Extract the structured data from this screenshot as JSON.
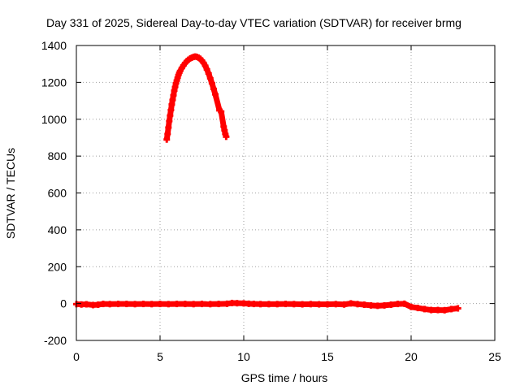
{
  "chart_data": {
    "type": "scatter",
    "title": "Day 331 of 2025, Sidereal Day-to-day VTEC variation (SDTVAR) for receiver brmg",
    "xlabel": "GPS time / hours",
    "ylabel": "SDTVAR / TECUs",
    "xlim": [
      0,
      25
    ],
    "ylim": [
      -200,
      1400
    ],
    "xticks": [
      "0",
      "5",
      "10",
      "15",
      "20",
      "25"
    ],
    "yticks": [
      "-200",
      "0",
      "200",
      "400",
      "600",
      "800",
      "1000",
      "1200",
      "1400"
    ],
    "grid": true,
    "legend": "none",
    "marker": "plus",
    "color": "#ff0000",
    "series": [
      {
        "points": [
          [
            5.4,
            890
          ],
          [
            5.45,
            920
          ],
          [
            5.5,
            955
          ],
          [
            5.55,
            990
          ],
          [
            5.6,
            1020
          ],
          [
            5.65,
            1050
          ],
          [
            5.7,
            1080
          ],
          [
            5.75,
            1105
          ],
          [
            5.8,
            1130
          ],
          [
            5.85,
            1155
          ],
          [
            5.9,
            1175
          ],
          [
            5.95,
            1195
          ],
          [
            6.0,
            1210
          ],
          [
            6.05,
            1225
          ],
          [
            6.1,
            1240
          ],
          [
            6.15,
            1252
          ],
          [
            6.2,
            1262
          ],
          [
            6.3,
            1278
          ],
          [
            6.4,
            1292
          ],
          [
            6.5,
            1305
          ],
          [
            6.6,
            1315
          ],
          [
            6.7,
            1323
          ],
          [
            6.8,
            1330
          ],
          [
            6.9,
            1334
          ],
          [
            7.0,
            1338
          ],
          [
            7.1,
            1340
          ],
          [
            7.2,
            1338
          ],
          [
            7.3,
            1334
          ],
          [
            7.4,
            1328
          ],
          [
            7.5,
            1318
          ],
          [
            7.6,
            1306
          ],
          [
            7.7,
            1290
          ],
          [
            7.8,
            1270
          ],
          [
            7.9,
            1248
          ],
          [
            8.0,
            1222
          ],
          [
            8.1,
            1195
          ],
          [
            8.2,
            1165
          ],
          [
            8.3,
            1135
          ],
          [
            8.55,
            1048
          ],
          [
            8.65,
            1042
          ],
          [
            8.8,
            960
          ],
          [
            8.85,
            940
          ],
          [
            8.9,
            920
          ],
          [
            8.95,
            905
          ],
          [
            0.0,
            -3
          ],
          [
            0.3,
            -5
          ],
          [
            0.6,
            -4
          ],
          [
            1.0,
            -8
          ],
          [
            1.3,
            -6
          ],
          [
            1.6,
            -2
          ],
          [
            2.0,
            -3
          ],
          [
            2.5,
            -2
          ],
          [
            3.0,
            -2
          ],
          [
            3.5,
            -3
          ],
          [
            4.0,
            -2
          ],
          [
            4.5,
            -3
          ],
          [
            5.0,
            -2
          ],
          [
            5.5,
            -3
          ],
          [
            6.0,
            -2
          ],
          [
            6.5,
            -2
          ],
          [
            7.0,
            -3
          ],
          [
            7.5,
            -2
          ],
          [
            8.0,
            -3
          ],
          [
            8.5,
            -2
          ],
          [
            9.0,
            -1
          ],
          [
            9.3,
            3
          ],
          [
            9.6,
            2
          ],
          [
            10.0,
            1
          ],
          [
            10.3,
            -1
          ],
          [
            10.6,
            -2
          ],
          [
            11.0,
            -3
          ],
          [
            11.5,
            -3
          ],
          [
            12.0,
            -3
          ],
          [
            12.5,
            -2
          ],
          [
            13.0,
            -3
          ],
          [
            13.5,
            -4
          ],
          [
            14.0,
            -3
          ],
          [
            14.5,
            -4
          ],
          [
            15.0,
            -4
          ],
          [
            15.5,
            -3
          ],
          [
            16.0,
            -5
          ],
          [
            16.4,
            1
          ],
          [
            16.8,
            -3
          ],
          [
            17.2,
            -6
          ],
          [
            17.6,
            -10
          ],
          [
            18.0,
            -12
          ],
          [
            18.4,
            -10
          ],
          [
            18.8,
            -6
          ],
          [
            19.2,
            -2
          ],
          [
            19.6,
            -1
          ],
          [
            20.0,
            -18
          ],
          [
            20.4,
            -24
          ],
          [
            20.8,
            -30
          ],
          [
            21.2,
            -35
          ],
          [
            21.6,
            -35
          ],
          [
            22.0,
            -36
          ],
          [
            22.4,
            -30
          ],
          [
            22.8,
            -26
          ]
        ]
      }
    ]
  }
}
